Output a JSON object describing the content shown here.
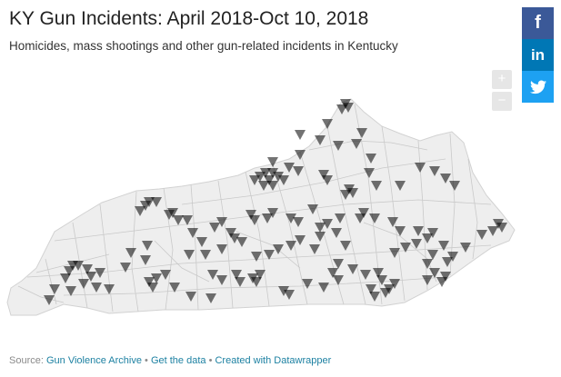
{
  "title": "KY Gun Incidents: April 2018-Oct 10, 2018",
  "subtitle": "Homicides, mass shootings and other gun-related incidents in Kentucky",
  "zoom": {
    "in_label": "+",
    "out_label": "−"
  },
  "social": [
    {
      "name": "facebook",
      "glyph": "f",
      "color": "#3b5998"
    },
    {
      "name": "linkedin",
      "glyph": "in",
      "color": "#0077b5"
    },
    {
      "name": "twitter",
      "glyph": "🐦",
      "color": "#1da1f2"
    }
  ],
  "footer": {
    "source_prefix": "Source:",
    "source_link": "Gun Violence Archive",
    "separator": "•",
    "data_link": "Get the data",
    "credit_link": "Created with Datawrapper"
  },
  "colors": {
    "map_fill": "#eeeeee",
    "county_border": "#c6c6c6",
    "marker": "#000000",
    "link": "#1d81a2"
  },
  "map": {
    "state": "Kentucky",
    "marker_shape": "downward-triangle",
    "marker_opacity": 0.55
  }
}
